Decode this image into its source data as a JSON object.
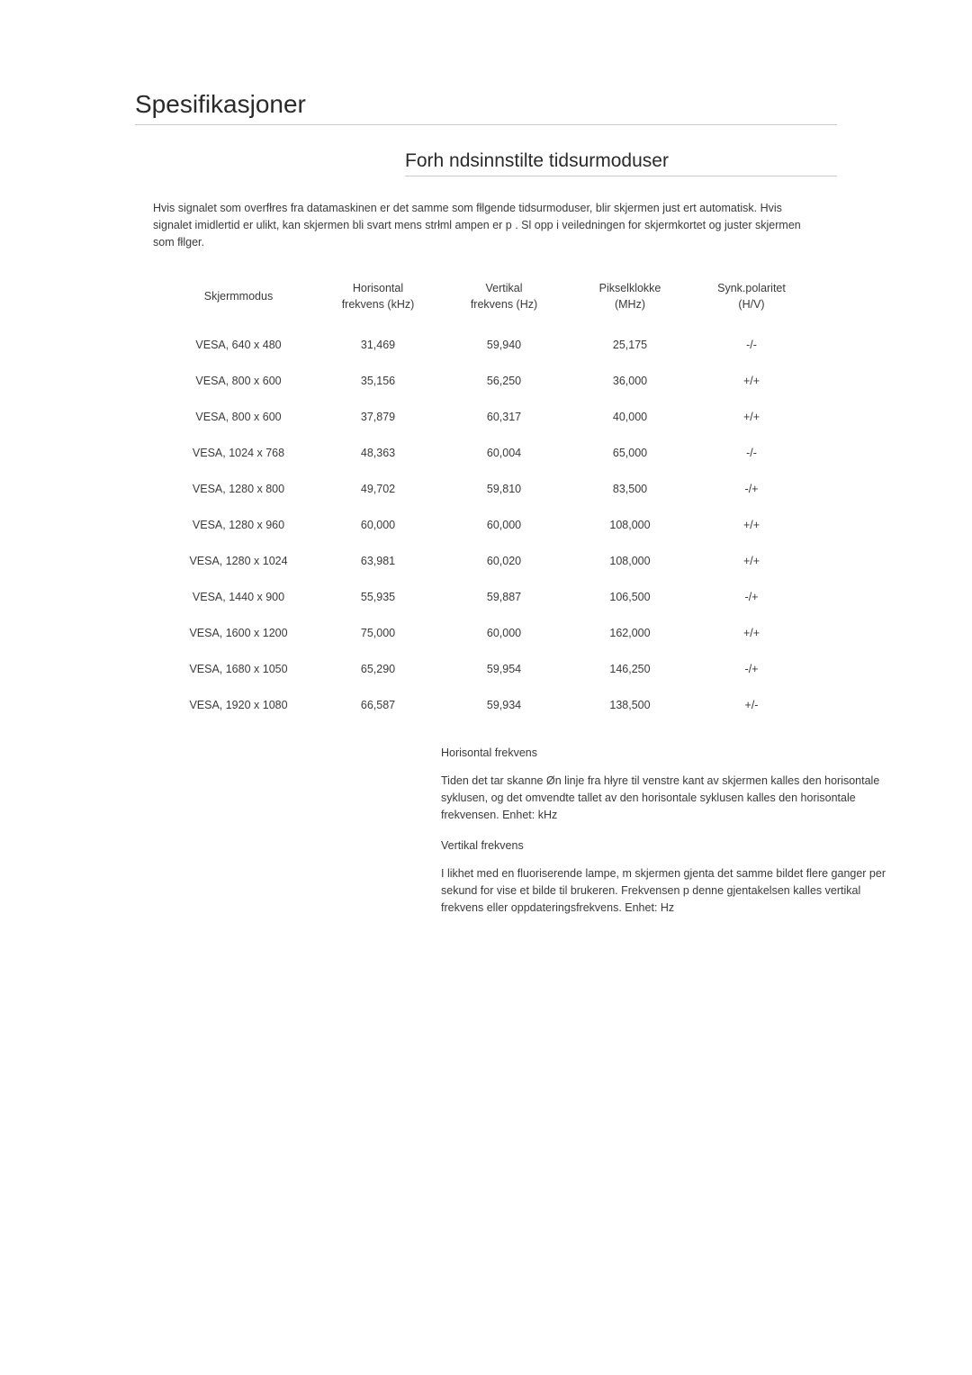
{
  "page": {
    "title": "Spesifikasjoner",
    "section_title": "Forh ndsinnstilte tidsurmoduser",
    "intro": "Hvis signalet som overfłres fra datamaskinen er det samme som fłlgende tidsurmoduser, blir skjermen just ert automatisk. Hvis signalet imidlertid er ulikt, kan skjermen bli svart mens strłml ampen er p . Sl opp i veiledningen for skjermkortet og juster skjermen som fłlger."
  },
  "table": {
    "headers": {
      "mode": "Skjermmodus",
      "hfreq_l1": "Horisontal",
      "hfreq_l2": "frekvens (kHz)",
      "vfreq_l1": "Vertikal",
      "vfreq_l2": "frekvens (Hz)",
      "pixclk_l1": "Pikselklokke",
      "pixclk_l2": "(MHz)",
      "sync_l1": "Synk.polaritet",
      "sync_l2": "(H/V)"
    },
    "rows": [
      {
        "mode": "VESA, 640 x 480",
        "h": "31,469",
        "v": "59,940",
        "p": "25,175",
        "s": "-/-"
      },
      {
        "mode": "VESA, 800 x 600",
        "h": "35,156",
        "v": "56,250",
        "p": "36,000",
        "s": "+/+"
      },
      {
        "mode": "VESA, 800 x 600",
        "h": "37,879",
        "v": "60,317",
        "p": "40,000",
        "s": "+/+"
      },
      {
        "mode": "VESA, 1024 x 768",
        "h": "48,363",
        "v": "60,004",
        "p": "65,000",
        "s": "-/-"
      },
      {
        "mode": "VESA, 1280 x 800",
        "h": "49,702",
        "v": "59,810",
        "p": "83,500",
        "s": "-/+"
      },
      {
        "mode": "VESA, 1280 x 960",
        "h": "60,000",
        "v": "60,000",
        "p": "108,000",
        "s": "+/+"
      },
      {
        "mode": "VESA, 1280 x 1024",
        "h": "63,981",
        "v": "60,020",
        "p": "108,000",
        "s": "+/+"
      },
      {
        "mode": "VESA, 1440 x 900",
        "h": "55,935",
        "v": "59,887",
        "p": "106,500",
        "s": "-/+"
      },
      {
        "mode": "VESA, 1600 x 1200",
        "h": "75,000",
        "v": "60,000",
        "p": "162,000",
        "s": "+/+"
      },
      {
        "mode": "VESA, 1680 x 1050",
        "h": "65,290",
        "v": "59,954",
        "p": "146,250",
        "s": "-/+"
      },
      {
        "mode": "VESA, 1920 x 1080",
        "h": "66,587",
        "v": "59,934",
        "p": "138,500",
        "s": "+/-"
      }
    ]
  },
  "notes": {
    "h1": "Horisontal frekvens",
    "p1": "Tiden det tar   skanne Øn linje fra hłyre til venstre kant av skjermen kalles den horisontale syklusen, og det omvendte tallet av den horisontale syklusen kalles den horisontale frekvensen. Enhet: kHz",
    "h2": "Vertikal frekvens",
    "p2": "I likhet med en fluoriserende lampe, m   skjermen gjenta det samme bildet flere ganger per sekund for   vise et   bilde til brukeren. Frekvensen p   denne gjentakelsen kalles vertikal frekvens eller oppdateringsfrekvens. Enhet: Hz"
  },
  "style": {
    "page_bg": "#ffffff",
    "text_color": "#3a3a3a",
    "title_color": "#2a2a2a",
    "rule_color": "#cccccc",
    "title_fontsize": 28,
    "section_fontsize": 21,
    "body_fontsize": 12.5
  }
}
